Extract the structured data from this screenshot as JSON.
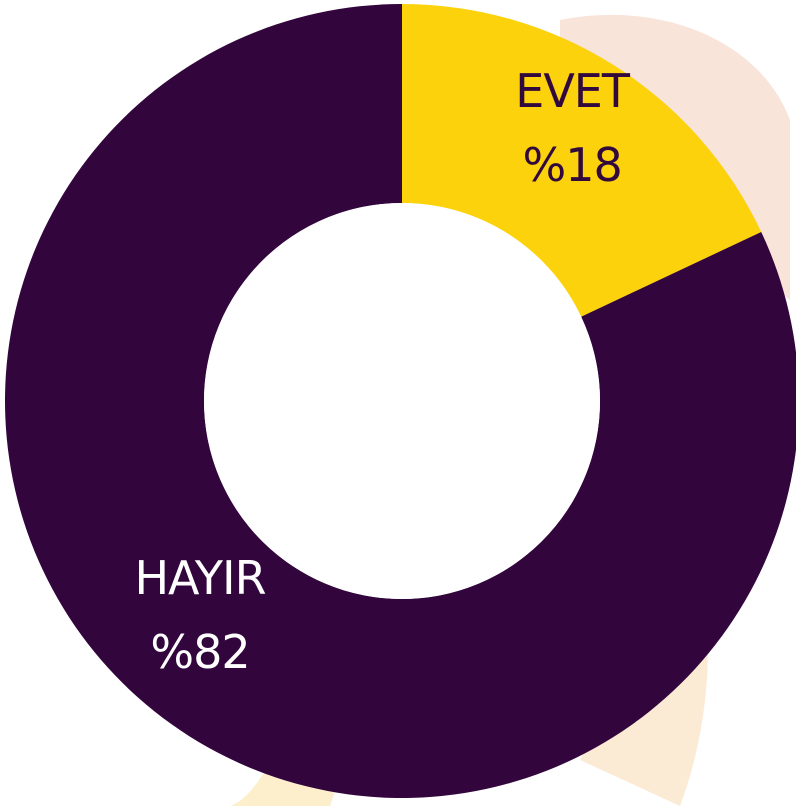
{
  "chart_data": {
    "type": "pie",
    "variant": "donut",
    "slices": [
      {
        "label": "EVET",
        "value": 18,
        "value_label": "%18",
        "color": "#fbd20b",
        "text_color": "#32093c"
      },
      {
        "label": "HAYIR",
        "value": 82,
        "value_label": "%82",
        "color": "#32063d",
        "text_color": "#ffffff"
      }
    ],
    "start_angle_deg": 0,
    "direction": "clockwise",
    "background_decoration_colors": [
      "#f3cdb9",
      "#f7d9b0",
      "#fbe2a2"
    ]
  }
}
